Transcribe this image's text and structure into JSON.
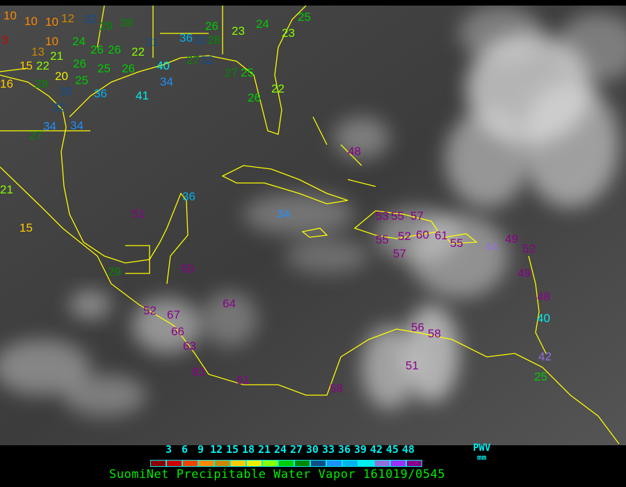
{
  "legend": {
    "ticks": [
      "3",
      "6",
      "9",
      "12",
      "15",
      "18",
      "21",
      "24",
      "27",
      "30",
      "33",
      "36",
      "39",
      "42",
      "45",
      "48"
    ],
    "colors": [
      "#8b0000",
      "#cc0000",
      "#ee4400",
      "#ff8800",
      "#cc8800",
      "#ffcc00",
      "#eeee00",
      "#88ff00",
      "#00cc00",
      "#008800",
      "#104e8b",
      "#1e90ff",
      "#00b2ee",
      "#00eeee",
      "#9370db",
      "#9b30ff",
      "#8b008b"
    ],
    "quantity": "PWV",
    "units": "mm"
  },
  "title": "SuomiNet Precipitable Water Vapor 161019/0545",
  "boundary_color": "#ffff00",
  "stations": [
    "10",
    "10",
    "10",
    "10",
    "3",
    "13",
    "15",
    "22",
    "21",
    "24",
    "26",
    "20",
    "25",
    "25",
    "26",
    "16",
    "29",
    "30",
    "32",
    "36",
    "34",
    "34",
    "27",
    "41",
    "40",
    "34",
    "32",
    "12",
    "29",
    "26",
    "26",
    "22",
    "31",
    "28",
    "36",
    "32",
    "28",
    "26",
    "23",
    "24",
    "23",
    "25",
    "27",
    "32",
    "27",
    "25",
    "26",
    "22",
    "48",
    "36",
    "34",
    "51",
    "15",
    "21",
    "29",
    "50",
    "52",
    "67",
    "66",
    "63",
    "64",
    "63",
    "61",
    "58",
    "56",
    "58",
    "51",
    "53",
    "55",
    "57",
    "52",
    "60",
    "55",
    "57",
    "61",
    "55",
    "44",
    "49",
    "52",
    "49",
    "48",
    "40",
    "42",
    "25"
  ]
}
